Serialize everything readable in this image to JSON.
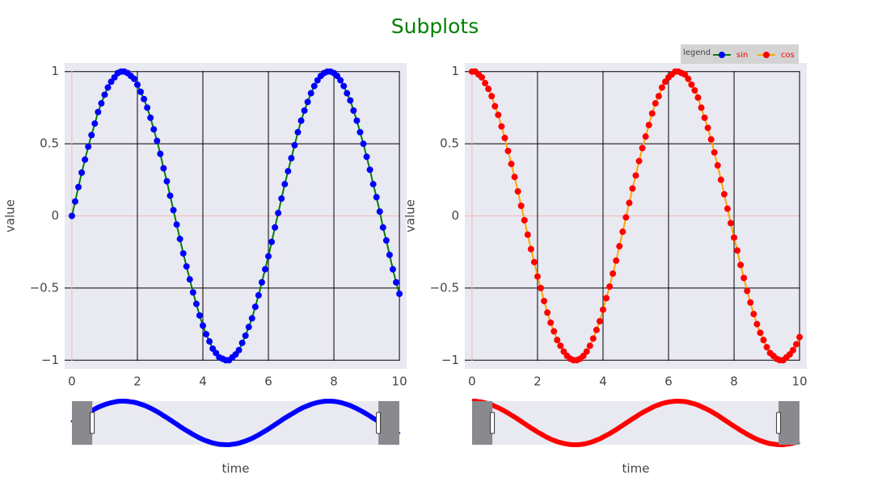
{
  "title": "Subplots",
  "title_color": "green",
  "legend": {
    "title": "legend",
    "font_color": "red",
    "position": "top-right"
  },
  "chart_data": [
    {
      "type": "line",
      "xlabel": "time",
      "ylabel": "value",
      "grid": true,
      "x": [
        0,
        0.1,
        0.2,
        0.3,
        0.4,
        0.5,
        0.6,
        0.7,
        0.8,
        0.9,
        1,
        1.1,
        1.2,
        1.3,
        1.4,
        1.5,
        1.6,
        1.7,
        1.8,
        1.9,
        2,
        2.1,
        2.2,
        2.3,
        2.4,
        2.5,
        2.6,
        2.7,
        2.8,
        2.9,
        3,
        3.1,
        3.2,
        3.3,
        3.4,
        3.5,
        3.6,
        3.7,
        3.8,
        3.9,
        4,
        4.1,
        4.2,
        4.3,
        4.4,
        4.5,
        4.6,
        4.7,
        4.8,
        4.9,
        5,
        5.1,
        5.2,
        5.3,
        5.4,
        5.5,
        5.6,
        5.7,
        5.8,
        5.9,
        6,
        6.1,
        6.2,
        6.3,
        6.4,
        6.5,
        6.6,
        6.7,
        6.8,
        6.9,
        7,
        7.1,
        7.2,
        7.3,
        7.4,
        7.5,
        7.6,
        7.7,
        7.8,
        7.9,
        8,
        8.1,
        8.2,
        8.3,
        8.4,
        8.5,
        8.6,
        8.7,
        8.8,
        8.9,
        9,
        9.1,
        9.2,
        9.3,
        9.4,
        9.5,
        9.6,
        9.7,
        9.8,
        9.9,
        10
      ],
      "series": [
        {
          "name": "sin",
          "color": "blue",
          "line_color": "green",
          "values": [
            0,
            0.1,
            0.2,
            0.3,
            0.39,
            0.48,
            0.56,
            0.64,
            0.72,
            0.78,
            0.84,
            0.89,
            0.93,
            0.96,
            0.99,
            1,
            1,
            0.99,
            0.97,
            0.95,
            0.91,
            0.86,
            0.81,
            0.75,
            0.68,
            0.6,
            0.52,
            0.43,
            0.33,
            0.24,
            0.14,
            0.04,
            -0.06,
            -0.16,
            -0.26,
            -0.35,
            -0.44,
            -0.53,
            -0.61,
            -0.69,
            -0.76,
            -0.82,
            -0.87,
            -0.92,
            -0.95,
            -0.98,
            -0.99,
            -1,
            -1,
            -0.98,
            -0.96,
            -0.93,
            -0.88,
            -0.83,
            -0.77,
            -0.71,
            -0.63,
            -0.55,
            -0.46,
            -0.37,
            -0.28,
            -0.18,
            -0.08,
            0.02,
            0.12,
            0.22,
            0.31,
            0.4,
            0.49,
            0.58,
            0.66,
            0.73,
            0.79,
            0.85,
            0.9,
            0.94,
            0.97,
            0.99,
            1,
            1,
            0.99,
            0.97,
            0.94,
            0.9,
            0.85,
            0.8,
            0.73,
            0.66,
            0.58,
            0.5,
            0.41,
            0.32,
            0.22,
            0.13,
            0.03,
            -0.08,
            -0.17,
            -0.27,
            -0.37,
            -0.46,
            -0.54
          ]
        }
      ],
      "xlim": [
        -0.22,
        10.22
      ],
      "ylim": [
        -1.06,
        1.06
      ],
      "xticks": [
        0,
        2,
        4,
        6,
        8,
        10
      ],
      "yticks": [
        {
          "value": -1,
          "label": "−1"
        },
        {
          "value": -0.5,
          "label": "−0.5"
        },
        0,
        0.5,
        1
      ],
      "rangeslider": {
        "xlim": [
          0,
          10
        ],
        "ylim": [
          -1,
          1
        ],
        "range": [
          0.62,
          9.36
        ]
      }
    },
    {
      "type": "line",
      "xlabel": "time",
      "ylabel": "value",
      "grid": true,
      "x": [
        0,
        0.1,
        0.2,
        0.3,
        0.4,
        0.5,
        0.6,
        0.7,
        0.8,
        0.9,
        1,
        1.1,
        1.2,
        1.3,
        1.4,
        1.5,
        1.6,
        1.7,
        1.8,
        1.9,
        2,
        2.1,
        2.2,
        2.3,
        2.4,
        2.5,
        2.6,
        2.7,
        2.8,
        2.9,
        3,
        3.1,
        3.2,
        3.3,
        3.4,
        3.5,
        3.6,
        3.7,
        3.8,
        3.9,
        4,
        4.1,
        4.2,
        4.3,
        4.4,
        4.5,
        4.6,
        4.7,
        4.8,
        4.9,
        5,
        5.1,
        5.2,
        5.3,
        5.4,
        5.5,
        5.6,
        5.7,
        5.8,
        5.9,
        6,
        6.1,
        6.2,
        6.3,
        6.4,
        6.5,
        6.6,
        6.7,
        6.8,
        6.9,
        7,
        7.1,
        7.2,
        7.3,
        7.4,
        7.5,
        7.6,
        7.7,
        7.8,
        7.9,
        8,
        8.1,
        8.2,
        8.3,
        8.4,
        8.5,
        8.6,
        8.7,
        8.8,
        8.9,
        9,
        9.1,
        9.2,
        9.3,
        9.4,
        9.5,
        9.6,
        9.7,
        9.8,
        9.9,
        10
      ],
      "series": [
        {
          "name": "cos",
          "color": "red",
          "line_color": "orange",
          "values": [
            1,
            1,
            0.98,
            0.96,
            0.92,
            0.88,
            0.83,
            0.76,
            0.7,
            0.62,
            0.54,
            0.45,
            0.36,
            0.27,
            0.17,
            0.07,
            -0.03,
            -0.13,
            -0.23,
            -0.32,
            -0.42,
            -0.5,
            -0.59,
            -0.67,
            -0.74,
            -0.8,
            -0.86,
            -0.9,
            -0.94,
            -0.97,
            -0.99,
            -1,
            -1,
            -0.99,
            -0.97,
            -0.94,
            -0.9,
            -0.85,
            -0.79,
            -0.73,
            -0.65,
            -0.57,
            -0.49,
            -0.4,
            -0.31,
            -0.21,
            -0.11,
            -0.01,
            0.09,
            0.19,
            0.28,
            0.38,
            0.47,
            0.55,
            0.63,
            0.71,
            0.78,
            0.83,
            0.89,
            0.93,
            0.96,
            0.98,
            1,
            1,
            0.99,
            0.98,
            0.95,
            0.91,
            0.87,
            0.82,
            0.75,
            0.68,
            0.61,
            0.53,
            0.44,
            0.35,
            0.25,
            0.15,
            0.05,
            -0.05,
            -0.15,
            -0.24,
            -0.34,
            -0.43,
            -0.52,
            -0.6,
            -0.68,
            -0.75,
            -0.81,
            -0.86,
            -0.91,
            -0.95,
            -0.97,
            -0.99,
            -1,
            -1,
            -0.98,
            -0.96,
            -0.93,
            -0.89,
            -0.84
          ]
        }
      ],
      "xlim": [
        -0.22,
        10.22
      ],
      "ylim": [
        -1.06,
        1.06
      ],
      "xticks": [
        0,
        2,
        4,
        6,
        8,
        10
      ],
      "yticks": [
        {
          "value": -1,
          "label": "−1"
        },
        {
          "value": -0.5,
          "label": "−0.5"
        },
        0,
        0.5,
        1
      ],
      "rangeslider": {
        "xlim": [
          0,
          10
        ],
        "ylim": [
          -1,
          1
        ],
        "range": [
          0.62,
          9.36
        ]
      }
    }
  ]
}
